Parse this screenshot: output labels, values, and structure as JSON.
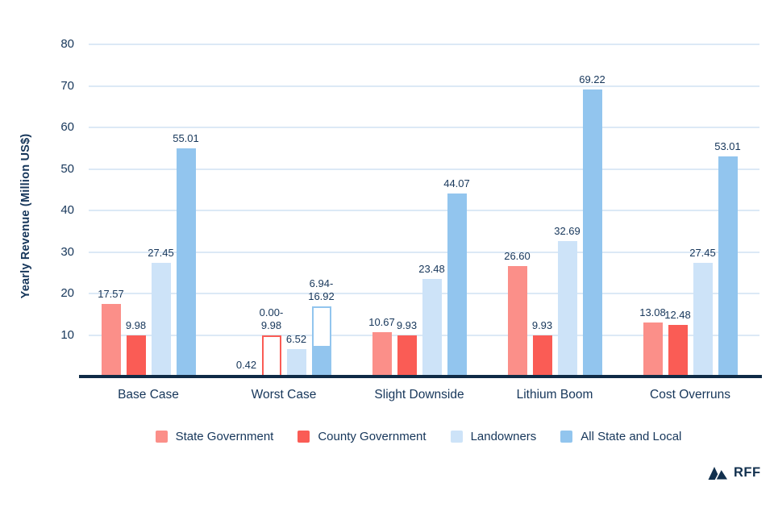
{
  "chart_data": {
    "type": "bar",
    "title": "",
    "xlabel": "",
    "ylabel": "Yearly Revenue (Million US$)",
    "ylim": [
      0,
      80
    ],
    "yticks": [
      10,
      20,
      30,
      40,
      50,
      60,
      70,
      80
    ],
    "grid": true,
    "legend_position": "bottom",
    "categories": [
      "Base Case",
      "Worst Case",
      "Slight Downside",
      "Lithium Boom",
      "Cost Overruns"
    ],
    "series": [
      {
        "name": "State Government",
        "color": "#FB8F89",
        "bars": [
          {
            "value": 17.57,
            "label": "17.57"
          },
          {
            "value": 0.42,
            "label": "0.42"
          },
          {
            "value": 10.67,
            "label": "10.67"
          },
          {
            "value": 26.6,
            "label": "26.60"
          },
          {
            "value": 13.08,
            "label": "13.08"
          }
        ]
      },
      {
        "name": "County Government",
        "color": "#FA5C55",
        "bars": [
          {
            "value": 9.98,
            "label": "9.98"
          },
          {
            "value": 0,
            "outline_to": 9.98,
            "label_lines": [
              "0.00-",
              "9.98"
            ]
          },
          {
            "value": 9.93,
            "label": "9.93"
          },
          {
            "value": 9.93,
            "label": "9.93"
          },
          {
            "value": 12.48,
            "label": "12.48"
          }
        ]
      },
      {
        "name": "Landowners",
        "color": "#CDE3F8",
        "bars": [
          {
            "value": 27.45,
            "label": "27.45"
          },
          {
            "value": 6.52,
            "label": "6.52"
          },
          {
            "value": 23.48,
            "label": "23.48"
          },
          {
            "value": 32.69,
            "label": "32.69"
          },
          {
            "value": 27.45,
            "label": "27.45"
          }
        ]
      },
      {
        "name": "All State and Local",
        "color": "#92C5EE",
        "bars": [
          {
            "value": 55.01,
            "label": "55.01"
          },
          {
            "value": 6.94,
            "outline_to": 16.92,
            "label_lines": [
              "6.94-",
              "16.92"
            ]
          },
          {
            "value": 44.07,
            "label": "44.07"
          },
          {
            "value": 69.22,
            "label": "69.22"
          },
          {
            "value": 53.01,
            "label": "53.01"
          }
        ]
      }
    ]
  },
  "branding": {
    "logo_text": "RFF"
  },
  "colors": {
    "text": "#16365A",
    "axis_line": "#0F2B46",
    "gridline": "#DCE9F6",
    "background": "#FFFFFF"
  }
}
